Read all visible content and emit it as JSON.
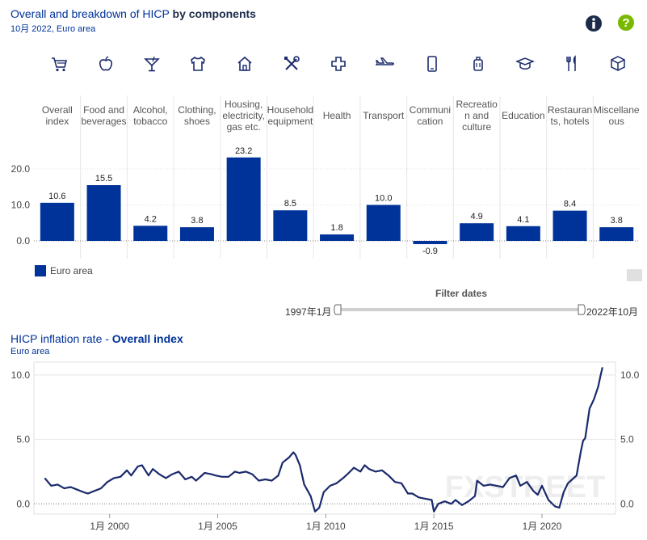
{
  "header": {
    "title_prefix": "Overall and breakdown of HICP ",
    "title_bold": "by components",
    "subtitle": "10月 2022, Euro area",
    "info_icon": "info-icon",
    "help_icon": "help-icon",
    "info_color": "#1c2b4a",
    "help_color": "#7ab800"
  },
  "categories": [
    {
      "icon": "cart-icon",
      "lines": [
        "Overall",
        "index"
      ]
    },
    {
      "icon": "apple-icon",
      "lines": [
        "Food and",
        "beverages"
      ]
    },
    {
      "icon": "cocktail-icon",
      "lines": [
        "Alcohol,",
        "tobacco"
      ]
    },
    {
      "icon": "shirt-icon",
      "lines": [
        "Clothing,",
        "shoes"
      ]
    },
    {
      "icon": "house-icon",
      "lines": [
        "Housing,",
        "electricity,",
        "gas etc."
      ]
    },
    {
      "icon": "tools-icon",
      "lines": [
        "Household",
        "equipment"
      ]
    },
    {
      "icon": "cross-icon",
      "lines": [
        "Health"
      ]
    },
    {
      "icon": "plane-icon",
      "lines": [
        "Transport"
      ]
    },
    {
      "icon": "phone-icon",
      "lines": [
        "Communi",
        "cation"
      ]
    },
    {
      "icon": "luggage-icon",
      "lines": [
        "Recreatio",
        "n and",
        "culture"
      ]
    },
    {
      "icon": "graduation-cap-icon",
      "lines": [
        "Education"
      ]
    },
    {
      "icon": "cutlery-icon",
      "lines": [
        "Restauran",
        "ts, hotels"
      ]
    },
    {
      "icon": "box-icon",
      "lines": [
        "Miscellane",
        "ous"
      ]
    }
  ],
  "chart_data": [
    {
      "type": "bar",
      "title": "Overall and breakdown of HICP by components",
      "subtitle": "10月 2022, Euro area",
      "categories": [
        "Overall index",
        "Food and beverages",
        "Alcohol, tobacco",
        "Clothing, shoes",
        "Housing, electricity, gas etc.",
        "Household equipment",
        "Health",
        "Transport",
        "Communication",
        "Recreation and culture",
        "Education",
        "Restaurants, hotels",
        "Miscellaneous"
      ],
      "series": [
        {
          "name": "Euro area",
          "values": [
            10.6,
            15.5,
            4.2,
            3.8,
            23.2,
            8.5,
            1.8,
            10.0,
            -0.9,
            4.9,
            4.1,
            8.4,
            3.8
          ]
        }
      ],
      "value_labels": [
        "10.6",
        "15.5",
        "4.2",
        "3.8",
        "23.2",
        "8.5",
        "1.8",
        "10.0",
        "-0.9",
        "4.9",
        "4.1",
        "8.4",
        "3.8"
      ],
      "ylim": [
        -3,
        25
      ],
      "yticks": [
        0,
        10,
        20
      ],
      "ytick_labels": [
        "0.0",
        "10.0",
        "20.0"
      ],
      "color": "#003399"
    },
    {
      "type": "line",
      "title": "HICP inflation rate - Overall index",
      "subtitle": "Euro area",
      "series": [
        {
          "name": "Euro area",
          "points": [
            [
              1997.0,
              2.0
            ],
            [
              1997.3,
              1.4
            ],
            [
              1997.6,
              1.5
            ],
            [
              1997.9,
              1.2
            ],
            [
              1998.2,
              1.3
            ],
            [
              1998.5,
              1.1
            ],
            [
              1998.8,
              0.9
            ],
            [
              1999.0,
              0.8
            ],
            [
              1999.3,
              1.0
            ],
            [
              1999.6,
              1.2
            ],
            [
              1999.9,
              1.7
            ],
            [
              2000.2,
              2.0
            ],
            [
              2000.5,
              2.1
            ],
            [
              2000.8,
              2.6
            ],
            [
              2001.0,
              2.2
            ],
            [
              2001.3,
              2.9
            ],
            [
              2001.5,
              3.0
            ],
            [
              2001.8,
              2.2
            ],
            [
              2002.0,
              2.7
            ],
            [
              2002.3,
              2.3
            ],
            [
              2002.6,
              2.0
            ],
            [
              2002.9,
              2.3
            ],
            [
              2003.2,
              2.5
            ],
            [
              2003.5,
              1.9
            ],
            [
              2003.8,
              2.1
            ],
            [
              2004.0,
              1.8
            ],
            [
              2004.4,
              2.4
            ],
            [
              2004.7,
              2.3
            ],
            [
              2004.9,
              2.2
            ],
            [
              2005.2,
              2.1
            ],
            [
              2005.5,
              2.1
            ],
            [
              2005.8,
              2.5
            ],
            [
              2006.0,
              2.4
            ],
            [
              2006.3,
              2.5
            ],
            [
              2006.6,
              2.3
            ],
            [
              2006.9,
              1.8
            ],
            [
              2007.2,
              1.9
            ],
            [
              2007.5,
              1.8
            ],
            [
              2007.8,
              2.2
            ],
            [
              2008.0,
              3.2
            ],
            [
              2008.3,
              3.6
            ],
            [
              2008.5,
              4.0
            ],
            [
              2008.6,
              3.8
            ],
            [
              2008.8,
              3.0
            ],
            [
              2009.0,
              1.5
            ],
            [
              2009.3,
              0.6
            ],
            [
              2009.5,
              -0.6
            ],
            [
              2009.7,
              -0.3
            ],
            [
              2009.9,
              0.9
            ],
            [
              2010.2,
              1.4
            ],
            [
              2010.5,
              1.6
            ],
            [
              2010.8,
              2.0
            ],
            [
              2011.0,
              2.3
            ],
            [
              2011.3,
              2.8
            ],
            [
              2011.6,
              2.5
            ],
            [
              2011.8,
              3.0
            ],
            [
              2012.0,
              2.7
            ],
            [
              2012.3,
              2.5
            ],
            [
              2012.6,
              2.6
            ],
            [
              2012.9,
              2.2
            ],
            [
              2013.2,
              1.7
            ],
            [
              2013.5,
              1.6
            ],
            [
              2013.8,
              0.8
            ],
            [
              2014.0,
              0.8
            ],
            [
              2014.3,
              0.5
            ],
            [
              2014.6,
              0.4
            ],
            [
              2014.9,
              0.3
            ],
            [
              2015.0,
              -0.6
            ],
            [
              2015.2,
              0.0
            ],
            [
              2015.5,
              0.2
            ],
            [
              2015.8,
              0.0
            ],
            [
              2016.0,
              0.3
            ],
            [
              2016.3,
              -0.1
            ],
            [
              2016.6,
              0.2
            ],
            [
              2016.9,
              0.6
            ],
            [
              2017.0,
              1.8
            ],
            [
              2017.3,
              1.4
            ],
            [
              2017.6,
              1.5
            ],
            [
              2017.9,
              1.4
            ],
            [
              2018.2,
              1.3
            ],
            [
              2018.5,
              2.0
            ],
            [
              2018.8,
              2.2
            ],
            [
              2019.0,
              1.4
            ],
            [
              2019.3,
              1.7
            ],
            [
              2019.6,
              1.0
            ],
            [
              2019.8,
              0.7
            ],
            [
              2020.0,
              1.4
            ],
            [
              2020.3,
              0.3
            ],
            [
              2020.6,
              -0.2
            ],
            [
              2020.8,
              -0.3
            ],
            [
              2021.0,
              0.9
            ],
            [
              2021.2,
              1.6
            ],
            [
              2021.4,
              1.9
            ],
            [
              2021.6,
              2.2
            ],
            [
              2021.8,
              4.1
            ],
            [
              2021.9,
              4.9
            ],
            [
              2022.0,
              5.1
            ],
            [
              2022.2,
              7.4
            ],
            [
              2022.4,
              8.1
            ],
            [
              2022.6,
              9.1
            ],
            [
              2022.7,
              9.9
            ],
            [
              2022.8,
              10.6
            ]
          ]
        }
      ],
      "xlim": [
        1996.5,
        2023.4
      ],
      "ylim": [
        -0.8,
        11.0
      ],
      "yticks": [
        0,
        5,
        10
      ],
      "ytick_labels": [
        "0.0",
        "5.0",
        "10.0"
      ],
      "xticks": [
        2000,
        2005,
        2010,
        2015,
        2020
      ],
      "xtick_labels": [
        "1月 2000",
        "1月 2005",
        "1月 2010",
        "1月 2015",
        "1月 2020"
      ],
      "color": "#1a2a6c"
    }
  ],
  "legend": {
    "label": "Euro area",
    "color": "#003399"
  },
  "filter": {
    "title": "Filter dates",
    "start": "1997年1月",
    "end": "2022年10月"
  },
  "line_header": {
    "title_prefix": "HICP inflation rate - ",
    "title_bold": "Overall index",
    "subtitle": "Euro area"
  },
  "watermark": "FXSTREET"
}
